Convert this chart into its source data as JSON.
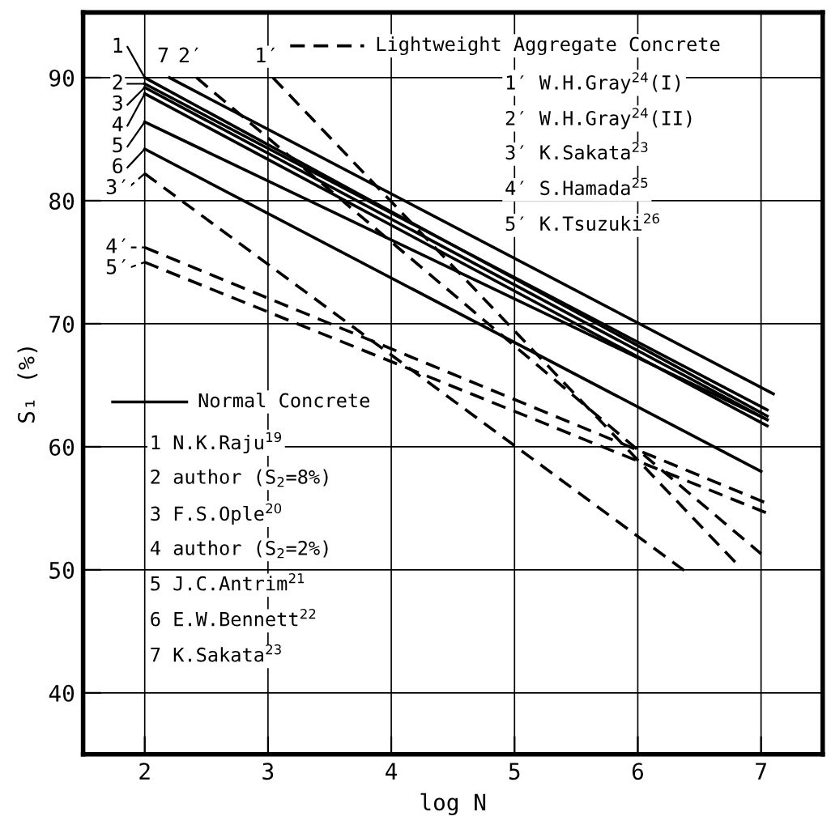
{
  "chart_data": {
    "type": "line",
    "xlabel": "log N",
    "ylabel": "S₁ (%)",
    "xlim": [
      1.5,
      7.5
    ],
    "ylim": [
      35,
      95.3
    ],
    "xticks": [
      2,
      3,
      4,
      5,
      6,
      7
    ],
    "yticks": [
      40,
      50,
      60,
      70,
      80,
      90
    ],
    "grid": true,
    "legend": "top left",
    "series": [
      {
        "name": "1",
        "color": "#000000",
        "line_style": "solid",
        "x": [
          2,
          7.05
        ],
        "values": [
          90,
          62.5
        ]
      },
      {
        "name": "2",
        "color": "#000000",
        "line_style": "solid",
        "x": [
          2,
          7.05
        ],
        "values": [
          89.5,
          63
        ]
      },
      {
        "name": "3",
        "color": "#000000",
        "line_style": "solid",
        "x": [
          2,
          7.05
        ],
        "values": [
          89.2,
          62.2
        ]
      },
      {
        "name": "4",
        "color": "#000000",
        "line_style": "solid",
        "x": [
          2,
          7.05
        ],
        "values": [
          88.7,
          61.7
        ]
      },
      {
        "name": "5",
        "color": "#000000",
        "line_style": "solid",
        "x": [
          2,
          7.05
        ],
        "values": [
          86.4,
          62.2
        ]
      },
      {
        "name": "6",
        "color": "#000000",
        "line_style": "solid",
        "x": [
          2,
          7.0
        ],
        "values": [
          84.2,
          58
        ]
      },
      {
        "name": "7",
        "color": "#000000",
        "line_style": "solid",
        "x": [
          2.2,
          7.1
        ],
        "values": [
          90,
          64.3
        ]
      },
      {
        "name": "1′",
        "color": "#000000",
        "line_style": "dashed",
        "x": [
          3.04,
          6.84
        ],
        "values": [
          90,
          50.1
        ]
      },
      {
        "name": "2′",
        "color": "#000000",
        "line_style": "dashed",
        "x": [
          2.42,
          7.0
        ],
        "values": [
          90,
          51.3
        ]
      },
      {
        "name": "3′",
        "color": "#000000",
        "line_style": "dashed",
        "x": [
          2,
          6.41
        ],
        "values": [
          82.2,
          49.7
        ]
      },
      {
        "name": "4′",
        "color": "#000000",
        "line_style": "dashed",
        "x": [
          2,
          7.05
        ],
        "values": [
          76.2,
          55.4
        ]
      },
      {
        "name": "5′",
        "color": "#000000",
        "line_style": "dashed",
        "x": [
          2,
          7.05
        ],
        "values": [
          75,
          54.6
        ]
      }
    ],
    "annotations": [
      "Lightweight Aggregate Concrete",
      "1′ W.H.Gray$^{24}$(I)",
      "2′ W.H.Gray$^{24}$(II)",
      "3′ K.Sakata$^{23}$",
      "4′ S.Hamada$^{25}$",
      "5′ K.Tsuzuki$^{26}$",
      "Normal Concrete",
      "1 N.K.Raju$^{19}$",
      "2 author (S$_{2}$=8%)",
      "3 F.S.Ople$^{20}$",
      "4 author (S$_{2}$=2%)",
      "5 J.C.Antrim$^{21}$",
      "6 E.W.Bennett$^{22}$",
      "7 K.Sakata$^{23}$"
    ]
  }
}
